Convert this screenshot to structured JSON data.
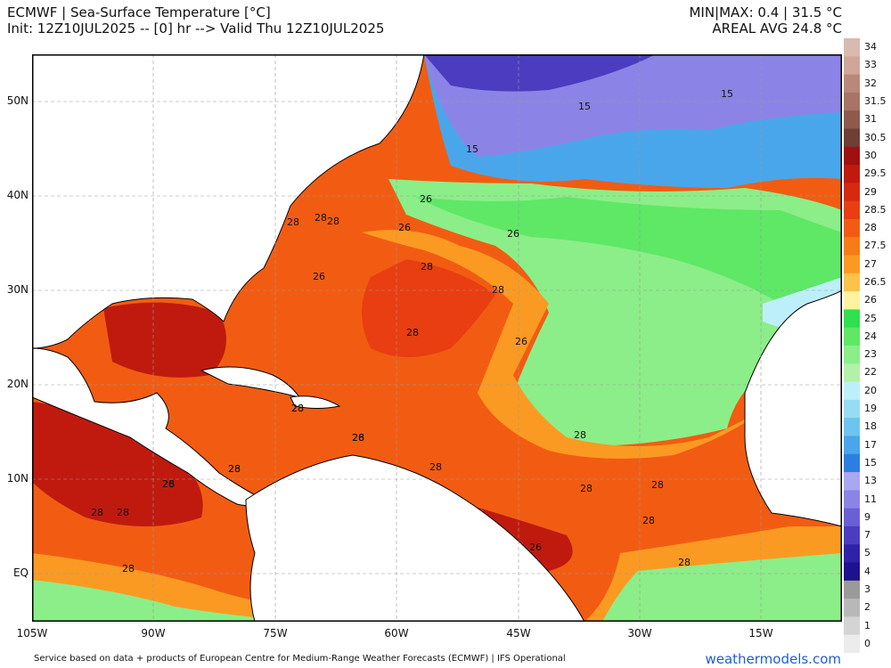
{
  "header": {
    "title": "ECMWF | Sea-Surface Temperature [°C]",
    "subtitle": "Init: 12Z10JUL2025 -- [0] hr --> Valid Thu 12Z10JUL2025",
    "minmax": "MIN|MAX: 0.4 | 31.5 °C",
    "areal_avg": "AREAL AVG 24.8 °C"
  },
  "map": {
    "lat_labels": [
      "50N",
      "40N",
      "30N",
      "20N",
      "10N",
      "EQ"
    ],
    "lon_labels": [
      "105W",
      "90W",
      "75W",
      "60W",
      "45W",
      "30W",
      "15W"
    ],
    "contour_labels": [
      "15",
      "15",
      "15",
      "26",
      "26",
      "26",
      "26",
      "28",
      "28",
      "28",
      "28",
      "28",
      "28",
      "26",
      "28",
      "28",
      "28",
      "28",
      "28",
      "28",
      "28",
      "28",
      "28",
      "26",
      "28",
      "28",
      "28",
      "28",
      "26",
      "28",
      "28",
      "26"
    ]
  },
  "colorbar": {
    "labels": [
      "34",
      "33",
      "32",
      "31.5",
      "31",
      "30.5",
      "30",
      "29.5",
      "29",
      "28.5",
      "28",
      "27.5",
      "27",
      "26.5",
      "26",
      "25",
      "24",
      "23",
      "22",
      "20",
      "19",
      "18",
      "17",
      "15",
      "13",
      "11",
      "9",
      "7",
      "5",
      "4",
      "3",
      "2",
      "1",
      "0"
    ],
    "colors": [
      "#d9b9b0",
      "#cfa699",
      "#b98878",
      "#a87465",
      "#8e5a4c",
      "#6e3f35",
      "#a01010",
      "#c01a0f",
      "#d62a10",
      "#e83e12",
      "#f25c12",
      "#f77b18",
      "#fb9a22",
      "#fdc24a",
      "#fff3a0",
      "#2fe04f",
      "#5ee866",
      "#8cee88",
      "#b2f1a8",
      "#bdeffa",
      "#96dcf4",
      "#6ec4f0",
      "#4aa6ea",
      "#2c7fe0",
      "#a9a6f2",
      "#8b84e6",
      "#6b5fd6",
      "#4c3cc0",
      "#2f22a8",
      "#1c1290",
      "#9a9a9a",
      "#b8b8b8",
      "#d4d4d4",
      "#ececec"
    ]
  },
  "footer": {
    "text": "Service based on data + products of European Centre for Medium-Range Weather Forecasts (ECMWF) | IFS Operational",
    "brand": "weathermodels.com"
  }
}
